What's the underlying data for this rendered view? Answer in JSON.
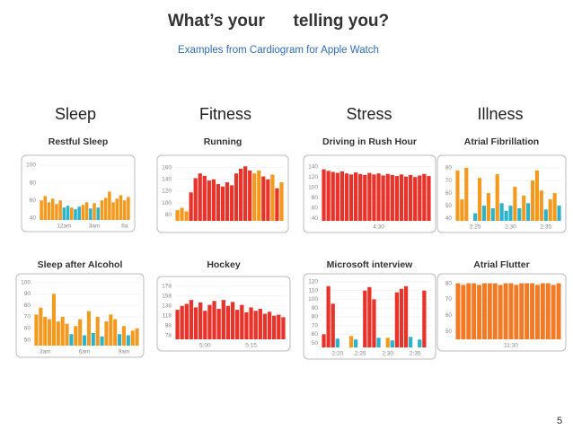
{
  "slide": {
    "title": "What’s your      telling you?",
    "subtitle": "Examples from Cardiogram for Apple Watch",
    "columns": [
      "Sleep",
      "Fitness",
      "Stress",
      "Illness"
    ],
    "page": "5"
  },
  "chart_data": [
    {
      "type": "bar",
      "title": "Restful Sleep",
      "ylim": [
        38,
        104
      ],
      "yticks": [
        40,
        60,
        80,
        100
      ],
      "categories": [
        null,
        null,
        null,
        null,
        null,
        null,
        "12am",
        null,
        null,
        null,
        null,
        null,
        null,
        null,
        "3am",
        null,
        null,
        null,
        null,
        null,
        null,
        null,
        "6a",
        null
      ],
      "series": [
        {
          "color": "#f39a1e",
          "values": [
            60,
            65,
            58,
            62,
            56,
            60,
            null,
            null,
            52,
            null,
            null,
            55,
            58,
            null,
            57,
            null,
            60,
            63,
            70,
            58,
            62,
            66,
            60,
            64
          ]
        },
        {
          "color": "#2bb3cc",
          "values": [
            null,
            null,
            null,
            null,
            null,
            null,
            52,
            54,
            null,
            50,
            53,
            null,
            null,
            51,
            null,
            52,
            null,
            null,
            null,
            null,
            null,
            null,
            null,
            null
          ]
        }
      ]
    },
    {
      "type": "bar",
      "title": "Running",
      "ylim": [
        70,
        170
      ],
      "yticks": [
        80,
        100,
        120,
        140,
        160
      ],
      "categories": [
        null,
        null,
        null,
        null,
        null,
        null,
        null,
        null,
        null,
        null,
        null,
        null,
        null,
        null,
        null,
        null,
        null,
        null,
        null,
        null,
        null,
        null,
        null,
        null
      ],
      "series": [
        {
          "color": "#f39a1e",
          "values": [
            88,
            92,
            86,
            null,
            null,
            null,
            null,
            null,
            null,
            null,
            null,
            null,
            null,
            null,
            null,
            null,
            null,
            150,
            155,
            null,
            null,
            148,
            null,
            135
          ]
        },
        {
          "color": "#e8332a",
          "values": [
            null,
            null,
            null,
            118,
            142,
            150,
            146,
            138,
            140,
            132,
            128,
            135,
            130,
            150,
            158,
            162,
            155,
            null,
            null,
            145,
            140,
            null,
            125,
            null
          ]
        }
      ]
    },
    {
      "type": "bar",
      "title": "Driving in Rush Hour",
      "ylim": [
        35,
        150
      ],
      "yticks": [
        40,
        60,
        80,
        100,
        120,
        140
      ],
      "categories": [
        null,
        null,
        null,
        null,
        null,
        null,
        null,
        null,
        null,
        null,
        null,
        null,
        "4:30",
        null,
        null,
        null,
        null,
        null,
        null,
        null,
        null,
        null,
        null,
        null
      ],
      "series": [
        {
          "color": "#e8332a",
          "values": [
            135,
            132,
            130,
            128,
            131,
            127,
            125,
            129,
            126,
            124,
            128,
            125,
            127,
            123,
            126,
            124,
            122,
            125,
            121,
            124,
            120,
            123,
            126,
            122
          ]
        }
      ]
    },
    {
      "type": "bar",
      "title": "Atrial Fibrillation",
      "ylim": [
        38,
        85
      ],
      "yticks": [
        40,
        50,
        60,
        70,
        80
      ],
      "categories": [
        null,
        null,
        null,
        null,
        "2:25",
        null,
        null,
        null,
        null,
        null,
        null,
        null,
        "2:30",
        null,
        null,
        null,
        null,
        null,
        null,
        null,
        "2:35",
        null,
        null,
        null
      ],
      "series": [
        {
          "color": "#f39a1e",
          "values": [
            78,
            55,
            80,
            null,
            null,
            72,
            null,
            60,
            null,
            75,
            null,
            null,
            null,
            65,
            null,
            58,
            null,
            70,
            78,
            62,
            null,
            55,
            60,
            null
          ]
        },
        {
          "color": "#2bb3cc",
          "values": [
            null,
            null,
            null,
            null,
            44,
            null,
            50,
            null,
            48,
            null,
            52,
            46,
            50,
            null,
            48,
            null,
            52,
            null,
            null,
            null,
            47,
            null,
            null,
            50
          ]
        }
      ]
    },
    {
      "type": "bar",
      "title": "Sleep after Alcohol",
      "ylim": [
        45,
        102
      ],
      "yticks": [
        50,
        60,
        70,
        80,
        90,
        100
      ],
      "categories": [
        null,
        null,
        "3am",
        null,
        null,
        null,
        null,
        null,
        null,
        null,
        null,
        "6am",
        null,
        null,
        null,
        null,
        null,
        null,
        null,
        null,
        "9am",
        null,
        null,
        null
      ],
      "series": [
        {
          "color": "#f39a1e",
          "values": [
            72,
            78,
            70,
            68,
            90,
            66,
            70,
            64,
            null,
            62,
            68,
            null,
            75,
            null,
            70,
            null,
            66,
            72,
            68,
            null,
            62,
            null,
            58,
            60
          ]
        },
        {
          "color": "#2bb3cc",
          "values": [
            null,
            null,
            null,
            null,
            null,
            null,
            null,
            null,
            55,
            null,
            null,
            54,
            null,
            56,
            null,
            53,
            null,
            null,
            null,
            55,
            null,
            54,
            null,
            null
          ]
        }
      ]
    },
    {
      "type": "bar",
      "title": "Hockey",
      "ylim": [
        70,
        185
      ],
      "yticks": [
        78,
        98,
        118,
        138,
        158,
        178
      ],
      "categories": [
        null,
        null,
        null,
        null,
        null,
        null,
        "5:00",
        null,
        null,
        null,
        null,
        null,
        null,
        null,
        null,
        null,
        "5:15",
        null,
        null,
        null,
        null,
        null,
        null,
        null
      ],
      "series": [
        {
          "color": "#e8332a",
          "values": [
            130,
            138,
            142,
            150,
            135,
            145,
            128,
            140,
            148,
            132,
            150,
            138,
            146,
            130,
            140,
            125,
            135,
            128,
            132,
            122,
            126,
            118,
            120,
            115
          ]
        }
      ]
    },
    {
      "type": "bar",
      "title": "Microsoft interview",
      "ylim": [
        45,
        122
      ],
      "yticks": [
        50,
        60,
        70,
        80,
        90,
        100,
        110,
        120
      ],
      "categories": [
        null,
        null,
        null,
        "2:20",
        null,
        null,
        null,
        null,
        "2:25",
        null,
        null,
        null,
        null,
        null,
        "2:30",
        null,
        null,
        null,
        null,
        null,
        "2:35",
        null,
        null,
        null
      ],
      "series": [
        {
          "color": "#e8332a",
          "values": [
            60,
            115,
            95,
            null,
            null,
            null,
            null,
            null,
            null,
            110,
            114,
            100,
            null,
            null,
            null,
            null,
            108,
            112,
            115,
            null,
            null,
            null,
            110,
            null
          ]
        },
        {
          "color": "#f39a1e",
          "values": [
            null,
            null,
            null,
            null,
            null,
            null,
            58,
            null,
            null,
            null,
            null,
            null,
            null,
            null,
            56,
            null,
            null,
            null,
            null,
            null,
            null,
            null,
            null,
            null
          ]
        },
        {
          "color": "#2bb3cc",
          "values": [
            null,
            null,
            null,
            55,
            null,
            null,
            null,
            54,
            null,
            null,
            null,
            null,
            56,
            null,
            null,
            53,
            null,
            null,
            null,
            57,
            null,
            54,
            null,
            null
          ]
        }
      ]
    },
    {
      "type": "bar",
      "title": "Atrial Flutter",
      "ylim": [
        45,
        82
      ],
      "yticks": [
        50,
        60,
        70,
        80
      ],
      "categories": [
        null,
        null,
        null,
        null,
        null,
        null,
        null,
        null,
        null,
        null,
        "11:30",
        null,
        null,
        null,
        null,
        null,
        null,
        null,
        null,
        null
      ],
      "series": [
        {
          "color": "#f37a24",
          "values": [
            80,
            79,
            80,
            80,
            79,
            80,
            80,
            80,
            79,
            80,
            80,
            79,
            80,
            80,
            80,
            79,
            80,
            80,
            79,
            80
          ]
        }
      ]
    }
  ]
}
